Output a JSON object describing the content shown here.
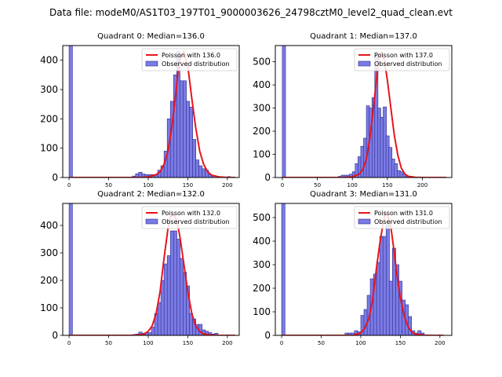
{
  "figure": {
    "suptitle": "Data file: modeM0/AS1T03_197T01_9000003626_24798cztM0_level2_quad_clean.evt"
  },
  "colors": {
    "bar_fill": "#7b7be6",
    "bar_edge": "#2b2b8a",
    "fit_line": "#e8141c",
    "axes": "#000000",
    "legend_edge": "#cccccc"
  },
  "chart_data": [
    {
      "type": "bar",
      "title": "Quadrant 0: Median=136.0",
      "xlim": [
        -8,
        215
      ],
      "ylim": [
        0,
        450
      ],
      "xticks": [
        0,
        50,
        100,
        150,
        200
      ],
      "yticks": [
        0,
        100,
        200,
        300,
        400
      ],
      "bin_width": 4.2,
      "bars": [
        [
          0,
          480
        ],
        [
          80,
          5
        ],
        [
          84,
          13
        ],
        [
          88,
          18
        ],
        [
          92,
          12
        ],
        [
          96,
          10
        ],
        [
          100,
          10
        ],
        [
          104,
          10
        ],
        [
          108,
          10
        ],
        [
          112,
          25
        ],
        [
          116,
          40
        ],
        [
          120,
          90
        ],
        [
          124,
          200
        ],
        [
          128,
          260
        ],
        [
          132,
          350
        ],
        [
          136,
          430
        ],
        [
          140,
          330
        ],
        [
          144,
          330
        ],
        [
          148,
          260
        ],
        [
          152,
          240
        ],
        [
          156,
          130
        ],
        [
          160,
          60
        ],
        [
          164,
          40
        ],
        [
          168,
          30
        ],
        [
          172,
          25
        ],
        [
          176,
          10
        ],
        [
          180,
          5
        ],
        [
          188,
          3
        ],
        [
          200,
          3
        ]
      ],
      "series": [
        {
          "name": "Poisson with 136.0",
          "kind": "line",
          "x": [
            0,
            90,
            100,
            110,
            115,
            120,
            125,
            130,
            135,
            138,
            141,
            145,
            150,
            155,
            160,
            165,
            170,
            175,
            180,
            190,
            200,
            210
          ],
          "y": [
            0,
            0,
            2,
            10,
            20,
            45,
            90,
            175,
            290,
            370,
            410,
            430,
            380,
            270,
            170,
            90,
            45,
            20,
            8,
            2,
            0,
            0
          ]
        },
        {
          "name": "Observed distribution",
          "kind": "bar"
        }
      ]
    },
    {
      "type": "bar",
      "title": "Quadrant 1: Median=137.0",
      "xlim": [
        -10,
        242
      ],
      "ylim": [
        0,
        570
      ],
      "xticks": [
        0,
        50,
        100,
        150,
        200
      ],
      "yticks": [
        0,
        100,
        200,
        300,
        400,
        500
      ],
      "bin_width": 4.6,
      "bars": [
        [
          0,
          600
        ],
        [
          80,
          5
        ],
        [
          84,
          10
        ],
        [
          88,
          10
        ],
        [
          92,
          10
        ],
        [
          96,
          15
        ],
        [
          100,
          25
        ],
        [
          104,
          60
        ],
        [
          108,
          90
        ],
        [
          112,
          135
        ],
        [
          116,
          170
        ],
        [
          120,
          310
        ],
        [
          124,
          300
        ],
        [
          128,
          345
        ],
        [
          132,
          530
        ],
        [
          136,
          300
        ],
        [
          140,
          260
        ],
        [
          144,
          305
        ],
        [
          148,
          180
        ],
        [
          152,
          130
        ],
        [
          156,
          80
        ],
        [
          160,
          60
        ],
        [
          164,
          30
        ],
        [
          168,
          25
        ],
        [
          172,
          15
        ],
        [
          176,
          5
        ],
        [
          180,
          3
        ]
      ],
      "series": [
        {
          "name": "Poisson with 137.0",
          "kind": "line",
          "x": [
            0,
            90,
            100,
            110,
            115,
            120,
            125,
            130,
            135,
            138,
            142,
            146,
            150,
            155,
            160,
            165,
            170,
            175,
            180,
            190,
            200,
            234
          ],
          "y": [
            0,
            0,
            3,
            15,
            35,
            80,
            170,
            300,
            440,
            520,
            540,
            500,
            420,
            300,
            180,
            95,
            40,
            15,
            5,
            1,
            0,
            0
          ]
        },
        {
          "name": "Observed distribution",
          "kind": "bar"
        }
      ]
    },
    {
      "type": "bar",
      "title": "Quadrant 2: Median=132.0",
      "xlim": [
        -8,
        215
      ],
      "ylim": [
        0,
        480
      ],
      "xticks": [
        0,
        50,
        100,
        150,
        200
      ],
      "yticks": [
        0,
        100,
        200,
        300,
        400
      ],
      "bin_width": 4.2,
      "bars": [
        [
          0,
          500
        ],
        [
          72,
          2
        ],
        [
          80,
          3
        ],
        [
          84,
          5
        ],
        [
          88,
          12
        ],
        [
          92,
          8
        ],
        [
          96,
          10
        ],
        [
          100,
          10
        ],
        [
          104,
          30
        ],
        [
          108,
          80
        ],
        [
          112,
          120
        ],
        [
          116,
          200
        ],
        [
          120,
          260
        ],
        [
          124,
          290
        ],
        [
          128,
          380
        ],
        [
          132,
          380
        ],
        [
          136,
          350
        ],
        [
          140,
          280
        ],
        [
          144,
          230
        ],
        [
          148,
          180
        ],
        [
          152,
          80
        ],
        [
          156,
          60
        ],
        [
          160,
          40
        ],
        [
          164,
          40
        ],
        [
          168,
          20
        ],
        [
          172,
          15
        ],
        [
          176,
          10
        ],
        [
          180,
          5
        ],
        [
          184,
          8
        ]
      ],
      "series": [
        {
          "name": "Poisson with 132.0",
          "kind": "line",
          "x": [
            0,
            85,
            95,
            100,
            105,
            110,
            115,
            120,
            125,
            128,
            132,
            136,
            140,
            145,
            150,
            155,
            160,
            165,
            170,
            180,
            190,
            210
          ],
          "y": [
            0,
            0,
            5,
            15,
            35,
            80,
            160,
            280,
            390,
            430,
            440,
            420,
            360,
            260,
            160,
            80,
            35,
            15,
            5,
            1,
            0,
            0
          ]
        },
        {
          "name": "Observed distribution",
          "kind": "bar"
        }
      ]
    },
    {
      "type": "bar",
      "title": "Quadrant 3: Median=131.0",
      "xlim": [
        -8,
        215
      ],
      "ylim": [
        0,
        560
      ],
      "xticks": [
        0,
        50,
        100,
        150,
        200
      ],
      "yticks": [
        0,
        100,
        200,
        300,
        400,
        500
      ],
      "bin_width": 4.2,
      "bars": [
        [
          0,
          600
        ],
        [
          80,
          10
        ],
        [
          84,
          10
        ],
        [
          88,
          10
        ],
        [
          92,
          20
        ],
        [
          96,
          15
        ],
        [
          100,
          85
        ],
        [
          104,
          110
        ],
        [
          108,
          170
        ],
        [
          112,
          240
        ],
        [
          116,
          260
        ],
        [
          120,
          310
        ],
        [
          124,
          420
        ],
        [
          128,
          420
        ],
        [
          132,
          470
        ],
        [
          136,
          230
        ],
        [
          140,
          370
        ],
        [
          144,
          300
        ],
        [
          148,
          230
        ],
        [
          152,
          150
        ],
        [
          156,
          130
        ],
        [
          160,
          80
        ],
        [
          164,
          20
        ],
        [
          168,
          10
        ],
        [
          172,
          20
        ],
        [
          176,
          10
        ]
      ],
      "series": [
        {
          "name": "Poisson with 131.0",
          "kind": "line",
          "x": [
            0,
            90,
            100,
            105,
            110,
            115,
            120,
            124,
            128,
            131,
            134,
            138,
            142,
            146,
            150,
            155,
            160,
            165,
            170,
            180,
            190,
            205
          ],
          "y": [
            0,
            0,
            10,
            30,
            70,
            150,
            290,
            390,
            470,
            520,
            510,
            460,
            360,
            250,
            160,
            80,
            35,
            12,
            5,
            1,
            0,
            0
          ]
        },
        {
          "name": "Observed distribution",
          "kind": "bar"
        }
      ]
    }
  ]
}
